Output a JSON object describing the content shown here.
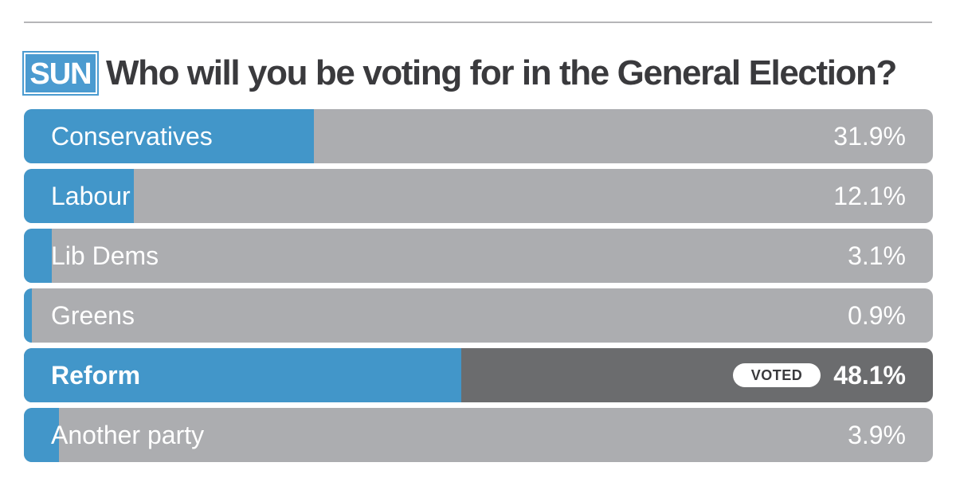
{
  "brand": "SUN",
  "question": "Who will you be voting for in the General Election?",
  "badge_label": "VOTED",
  "colors": {
    "fill": "#4296c9",
    "track": "#acadb0",
    "voted_track": "#6b6c6e",
    "brand": "#4b9bd0",
    "title": "#3a3a3d"
  },
  "chart_data": {
    "type": "bar",
    "orientation": "horizontal",
    "title": "Who will you be voting for in the General Election?",
    "categories": [
      "Conservatives",
      "Labour",
      "Lib Dems",
      "Greens",
      "Reform",
      "Another party"
    ],
    "values": [
      31.9,
      12.1,
      3.1,
      0.9,
      48.1,
      3.9
    ],
    "value_labels": [
      "31.9%",
      "12.1%",
      "3.1%",
      "0.9%",
      "48.1%",
      "3.9%"
    ],
    "voted": "Reform",
    "xlim": [
      0,
      100
    ],
    "grid": false
  }
}
